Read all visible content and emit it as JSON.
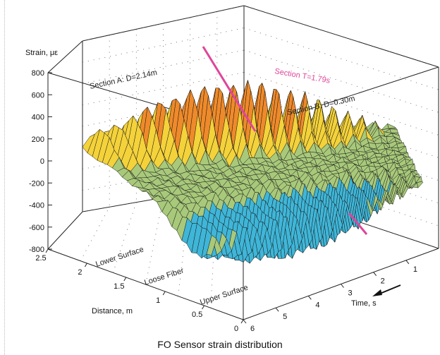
{
  "caption": "FO Sensor strain distribution",
  "chart_data": {
    "type": "surface3d",
    "title": "",
    "zlabel": "Strain, με",
    "xlabel": "Time, s",
    "ylabel": "Distance, m",
    "zlim": [
      -800,
      800
    ],
    "xlim": [
      0,
      6
    ],
    "ylim": [
      0,
      2.5
    ],
    "z_ticks": [
      "800",
      "600",
      "400",
      "200",
      "0",
      "-200",
      "-400",
      "-600",
      "-800"
    ],
    "x_ticks": [
      "1",
      "2",
      "3",
      "4",
      "5",
      "6"
    ],
    "y_ticks": [
      "2.5",
      "2",
      "1.5",
      "1",
      "0.5",
      "0"
    ],
    "annotations": {
      "section_a": "Section A: D=2.14m",
      "section_b": "Section B: D=0.30m",
      "section_t": "Section T=1.79s",
      "lower_surface": "Lower Surface",
      "loose_fiber": "Loose Fiber",
      "upper_surface": "Upper Surface"
    },
    "colors": {
      "section_t": "#e0459a",
      "high": "#c0281f",
      "mid_high": "#ef8a2a",
      "mid": "#f4d23a",
      "low_mid": "#a8c97a",
      "low": "#3fb6d8",
      "lowest": "#2a3d96"
    },
    "series": [
      {
        "name": "Section A: D=2.14m",
        "distance": 2.14,
        "amplitude": [
          560,
          600,
          650,
          700,
          720,
          740,
          760,
          780,
          770,
          760,
          740,
          720,
          700,
          690
        ]
      },
      {
        "name": "Section B: D=0.30m",
        "distance": 0.3,
        "amplitude": [
          -640,
          -620,
          -600,
          -600,
          -590,
          -600,
          -610,
          -620,
          -630,
          -640,
          -650,
          -660,
          -670,
          -680
        ]
      }
    ],
    "grid": true
  }
}
